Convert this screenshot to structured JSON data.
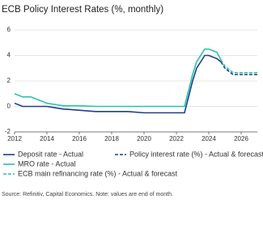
{
  "chart_data": {
    "type": "line",
    "title": "ECB Policy Interest Rates (%, monthly)",
    "source": "Source: Refinitiv, Capital Economics. Note: values are end of month.",
    "x": [
      2012,
      2012.5,
      2013,
      2013.5,
      2014,
      2014.5,
      2015,
      2016,
      2017,
      2018,
      2019,
      2020,
      2021,
      2022,
      2022.5,
      2022.75,
      2023,
      2023.25,
      2023.5,
      2023.75,
      2024,
      2024.5,
      2024.75,
      2025,
      2025.25,
      2025.5,
      2026,
      2026.5,
      2027
    ],
    "series": [
      {
        "name": "Deposit rate - Actual",
        "color": "#1c3f8e",
        "dashed": false,
        "values": [
          0.25,
          0,
          0,
          0,
          0,
          -0.1,
          -0.2,
          -0.3,
          -0.4,
          -0.4,
          -0.4,
          -0.5,
          -0.5,
          -0.5,
          -0.5,
          0.75,
          2.0,
          3.0,
          3.5,
          4.0,
          4.0,
          3.75,
          3.5,
          null,
          null,
          null,
          null,
          null,
          null
        ]
      },
      {
        "name": "Policy interest rate (%) - Actual & forecast",
        "color": "#1c3f8e",
        "dashed": true,
        "values": [
          null,
          null,
          null,
          null,
          null,
          null,
          null,
          null,
          null,
          null,
          null,
          null,
          null,
          null,
          null,
          null,
          null,
          null,
          null,
          null,
          null,
          null,
          3.5,
          3.0,
          2.75,
          2.5,
          2.5,
          2.5,
          2.5
        ]
      },
      {
        "name": "MRO rate - Actual",
        "color": "#2cc0a5",
        "dashed": false,
        "values": [
          1.0,
          0.75,
          0.75,
          0.5,
          0.25,
          0.15,
          0.05,
          0.05,
          0,
          0,
          0,
          0,
          0,
          0,
          0,
          1.25,
          2.5,
          3.5,
          4.0,
          4.5,
          4.5,
          4.25,
          3.65,
          null,
          null,
          null,
          null,
          null,
          null
        ]
      },
      {
        "name": "ECB main refinancing rate (%) - Actual & forecast",
        "color": "#2cc0a5",
        "dashed": true,
        "values": [
          null,
          null,
          null,
          null,
          null,
          null,
          null,
          null,
          null,
          null,
          null,
          null,
          null,
          null,
          null,
          null,
          null,
          null,
          null,
          null,
          null,
          null,
          3.65,
          3.15,
          2.9,
          2.65,
          2.65,
          2.65,
          2.65
        ]
      }
    ],
    "xlim": [
      2012,
      2027
    ],
    "xticks": [
      2012,
      2014,
      2016,
      2018,
      2020,
      2022,
      2024,
      2026
    ],
    "ylim": [
      -2,
      6
    ],
    "yticks": [
      -2,
      0,
      2,
      4,
      6
    ],
    "grid": true
  }
}
